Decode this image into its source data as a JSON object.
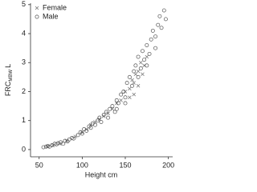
{
  "chart_data": {
    "type": "scatter",
    "xlabel": "Height cm",
    "ylabel": {
      "main": "FRC",
      "sub": "MBW",
      "unit": "L"
    },
    "xlim": [
      40,
      205
    ],
    "xticks": [
      50,
      100,
      150,
      200
    ],
    "ylim": [
      -0.25,
      5.05
    ],
    "yticks": [
      0,
      1,
      2,
      3,
      4,
      5
    ],
    "legend": "top-left",
    "series": [
      {
        "name": "Female",
        "marker": "x",
        "color": "#777777",
        "x": [
          60,
          66,
          74,
          82,
          92,
          100,
          105,
          110,
          115,
          120,
          125,
          130,
          135,
          140,
          145,
          150,
          155,
          158,
          160,
          162,
          165,
          168,
          170,
          172,
          175,
          160,
          155,
          165
        ],
        "values": [
          0.1,
          0.14,
          0.2,
          0.3,
          0.45,
          0.6,
          0.7,
          0.85,
          0.95,
          1.05,
          1.15,
          1.25,
          1.4,
          1.6,
          1.7,
          2.0,
          2.1,
          2.4,
          2.3,
          2.6,
          2.7,
          3.0,
          2.6,
          2.9,
          3.2,
          1.9,
          1.8,
          2.2
        ]
      },
      {
        "name": "Male",
        "marker": "o",
        "color": "#555555",
        "x": [
          55,
          58,
          60,
          62,
          65,
          68,
          70,
          72,
          75,
          78,
          80,
          83,
          85,
          88,
          90,
          95,
          98,
          100,
          102,
          105,
          108,
          110,
          112,
          115,
          118,
          120,
          122,
          125,
          128,
          130,
          132,
          135,
          138,
          140,
          142,
          145,
          148,
          150,
          152,
          155,
          158,
          160,
          162,
          165,
          168,
          170,
          172,
          175,
          178,
          180,
          182,
          185,
          188,
          190,
          192,
          195,
          197,
          165,
          175,
          185,
          150,
          140
        ],
        "values": [
          0.08,
          0.1,
          0.12,
          0.1,
          0.15,
          0.2,
          0.18,
          0.22,
          0.25,
          0.2,
          0.3,
          0.28,
          0.35,
          0.4,
          0.38,
          0.5,
          0.6,
          0.55,
          0.7,
          0.65,
          0.8,
          0.75,
          0.9,
          0.85,
          1.0,
          1.1,
          0.95,
          1.2,
          1.3,
          1.1,
          1.4,
          1.5,
          1.3,
          1.7,
          1.6,
          1.9,
          2.0,
          1.8,
          2.3,
          2.5,
          2.2,
          2.7,
          2.9,
          3.2,
          2.8,
          3.4,
          3.1,
          3.6,
          3.3,
          3.8,
          4.1,
          3.9,
          4.3,
          4.6,
          4.2,
          4.8,
          4.5,
          2.5,
          2.9,
          3.5,
          1.6,
          1.4
        ]
      }
    ]
  }
}
